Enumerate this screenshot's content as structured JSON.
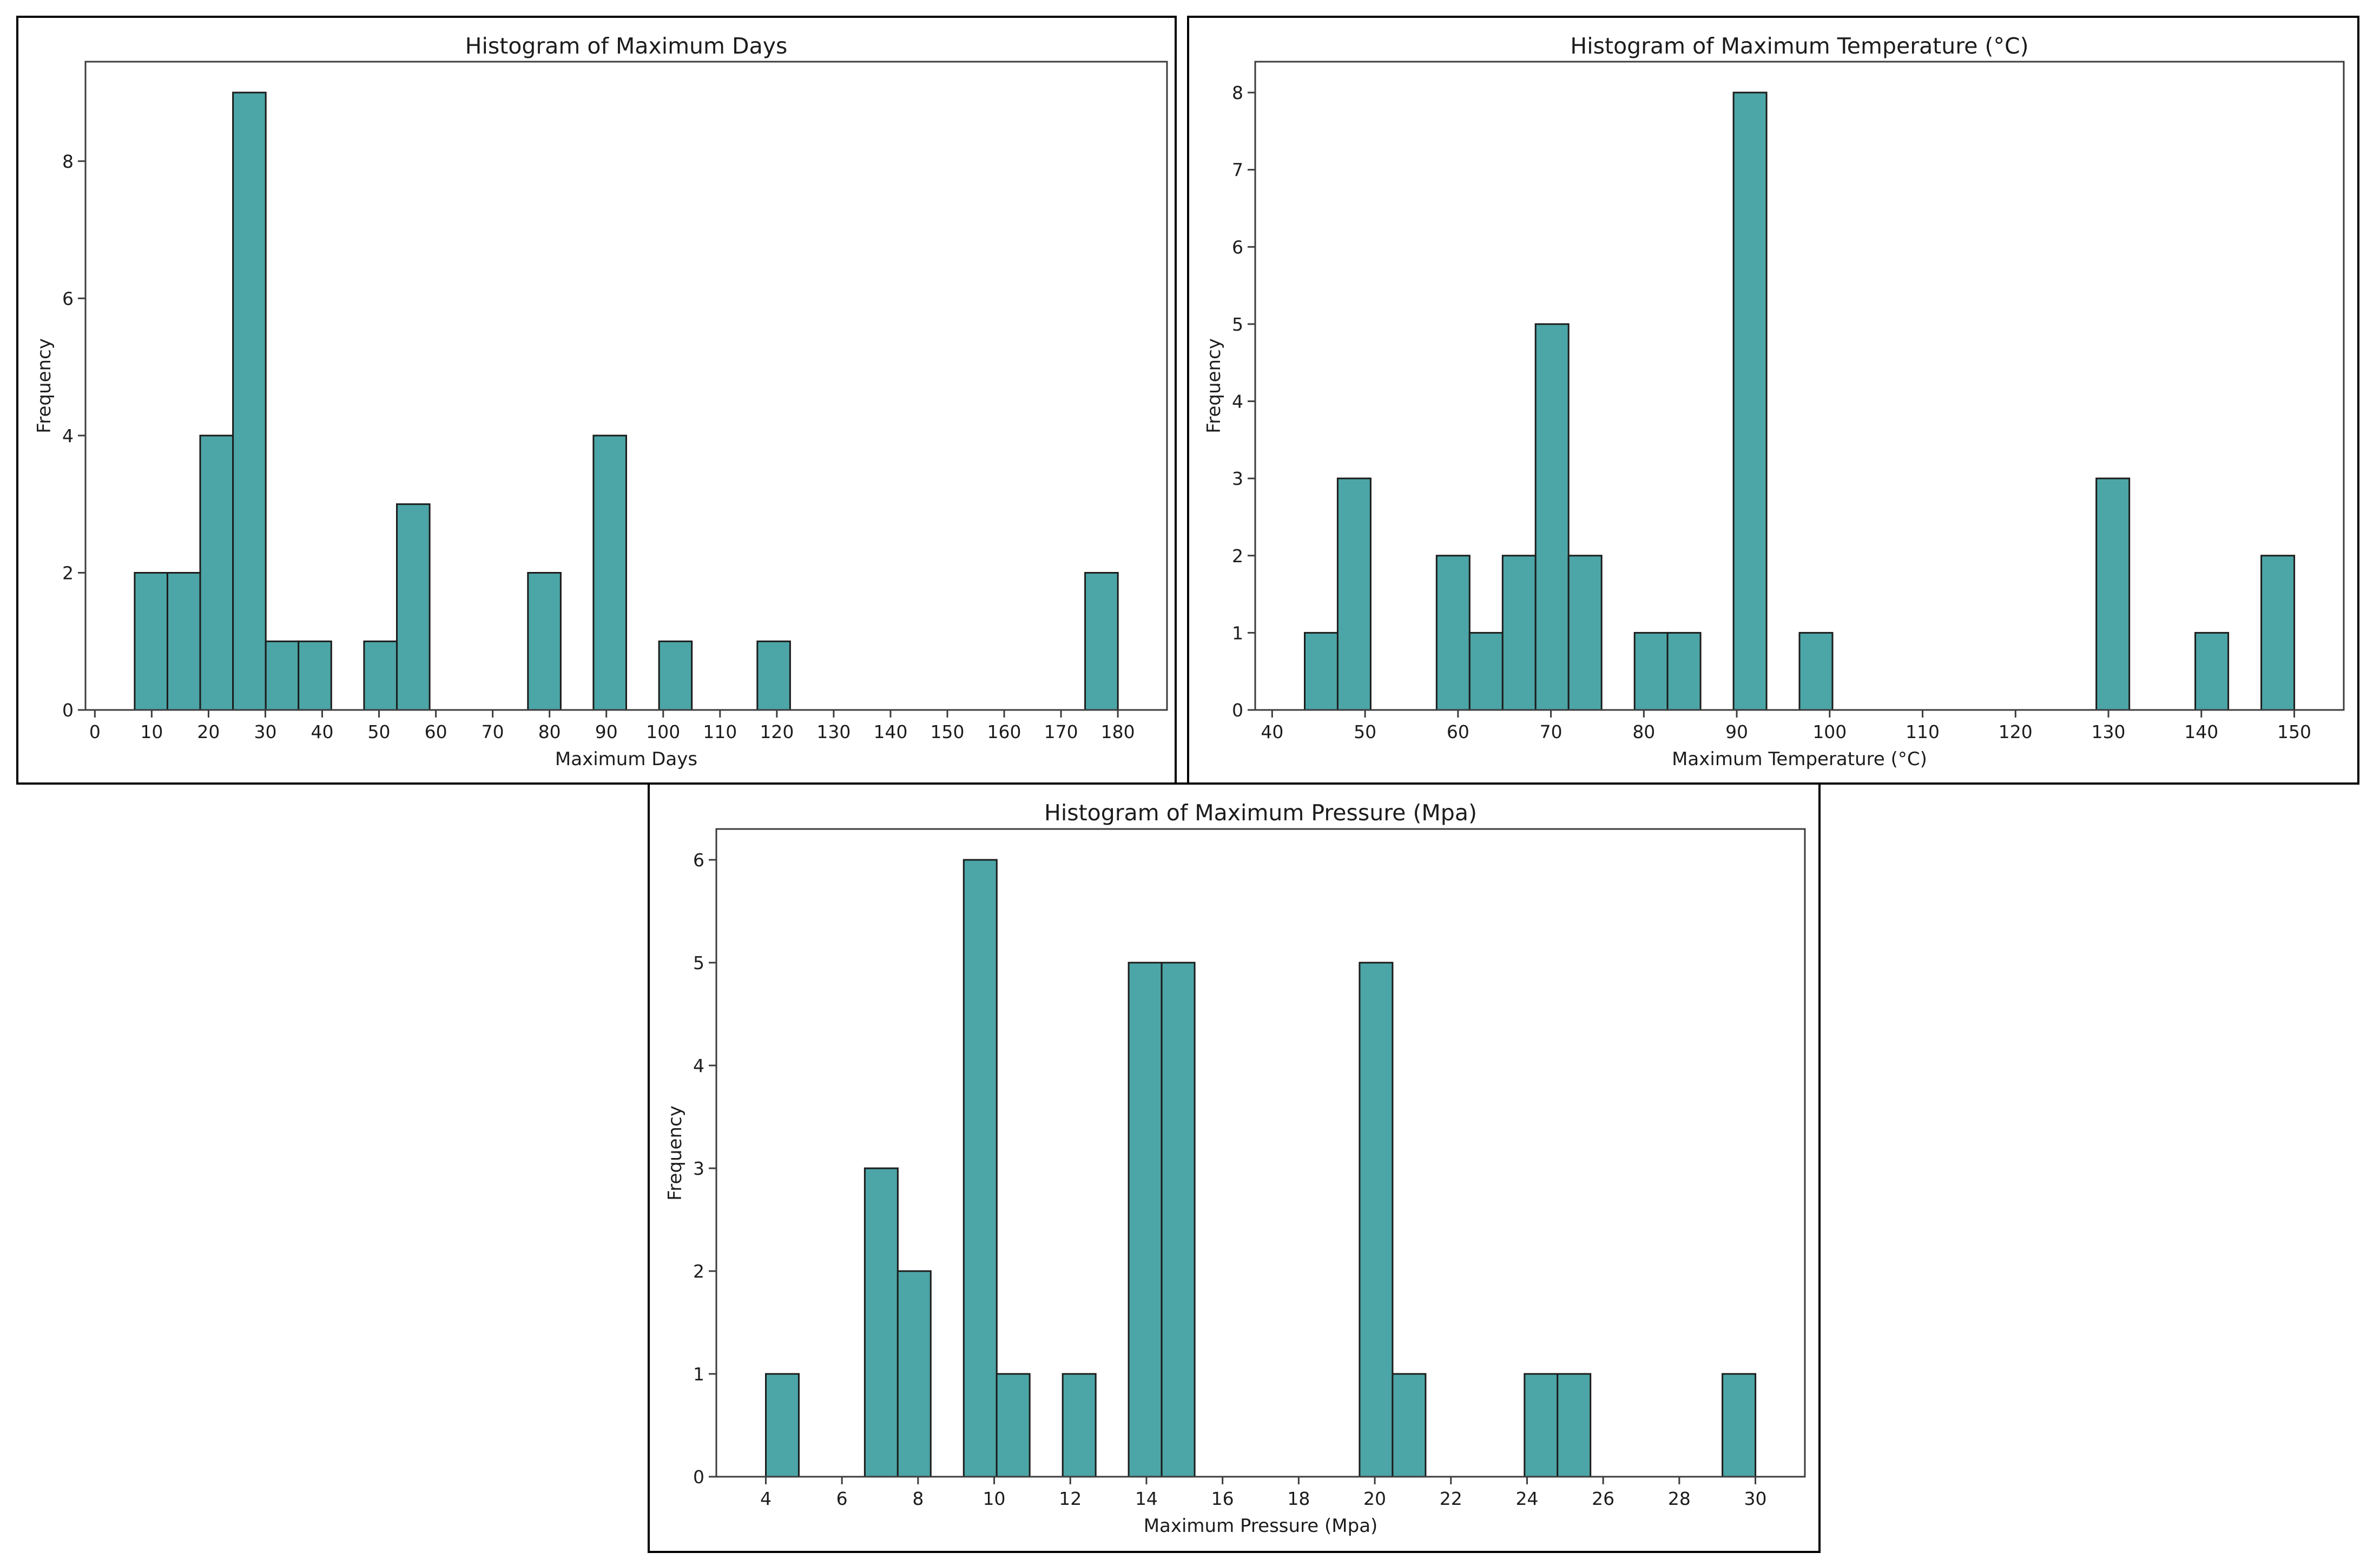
{
  "page": {
    "background": "#ffffff",
    "description": "Three histogram figures: two side by side on top, one centered below"
  },
  "style": {
    "bar_fill": "#4ca5a6",
    "bar_edge": "#1c1c1c",
    "spine_color": "#3d3d3d",
    "tick_color": "#3d3d3d",
    "text_color": "#1c1c1c",
    "figure_border": "#000000"
  },
  "chart_data": [
    {
      "id": "max-days",
      "type": "bar",
      "subtype": "histogram",
      "title": "Histogram of Maximum Days",
      "xlabel": "Maximum Days",
      "ylabel": "Frequency",
      "bin_start": 7,
      "bin_width": 5.766667,
      "counts": [
        2,
        2,
        4,
        9,
        1,
        1,
        0,
        1,
        3,
        0,
        0,
        0,
        2,
        0,
        4,
        0,
        1,
        0,
        0,
        1,
        0,
        0,
        0,
        0,
        0,
        0,
        0,
        0,
        0,
        2
      ],
      "total_observations": 33,
      "xlim": [
        -1.65,
        188.65
      ],
      "ylim": [
        0,
        9.45
      ],
      "xticks": [
        0,
        10,
        20,
        30,
        40,
        50,
        60,
        70,
        80,
        90,
        100,
        110,
        120,
        130,
        140,
        150,
        160,
        170,
        180
      ],
      "yticks": [
        0,
        2,
        4,
        6,
        8
      ],
      "grid": false,
      "legend": null
    },
    {
      "id": "max-temperature",
      "type": "bar",
      "subtype": "histogram",
      "title": "Histogram of Maximum Temperature (°C)",
      "xlabel": "Maximum Temperature (°C)",
      "ylabel": "Frequency",
      "bin_start": 43.5,
      "bin_width": 3.55,
      "counts": [
        1,
        3,
        0,
        0,
        2,
        1,
        2,
        5,
        2,
        0,
        1,
        1,
        0,
        8,
        0,
        1,
        0,
        0,
        0,
        0,
        0,
        0,
        0,
        0,
        3,
        0,
        0,
        1,
        0,
        2
      ],
      "total_observations": 33,
      "xlim": [
        38.175,
        155.325
      ],
      "ylim": [
        0,
        8.4
      ],
      "xticks": [
        40,
        50,
        60,
        70,
        80,
        90,
        100,
        110,
        120,
        130,
        140,
        150
      ],
      "yticks": [
        0,
        1,
        2,
        3,
        4,
        5,
        6,
        7,
        8
      ],
      "grid": false,
      "legend": null
    },
    {
      "id": "max-pressure",
      "type": "bar",
      "subtype": "histogram",
      "title": "Histogram of Maximum Pressure (Mpa)",
      "xlabel": "Maximum Pressure (Mpa)",
      "ylabel": "Frequency",
      "bin_start": 4,
      "bin_width": 0.866667,
      "counts": [
        1,
        0,
        0,
        3,
        2,
        0,
        6,
        1,
        0,
        1,
        0,
        5,
        5,
        0,
        0,
        0,
        0,
        0,
        5,
        1,
        0,
        0,
        0,
        1,
        1,
        0,
        0,
        0,
        0,
        1
      ],
      "total_observations": 33,
      "xlim": [
        2.7,
        31.3
      ],
      "ylim": [
        0,
        6.3
      ],
      "xticks": [
        4,
        6,
        8,
        10,
        12,
        14,
        16,
        18,
        20,
        22,
        24,
        26,
        28,
        30
      ],
      "yticks": [
        0,
        1,
        2,
        3,
        4,
        5,
        6
      ],
      "grid": false,
      "legend": null
    }
  ]
}
